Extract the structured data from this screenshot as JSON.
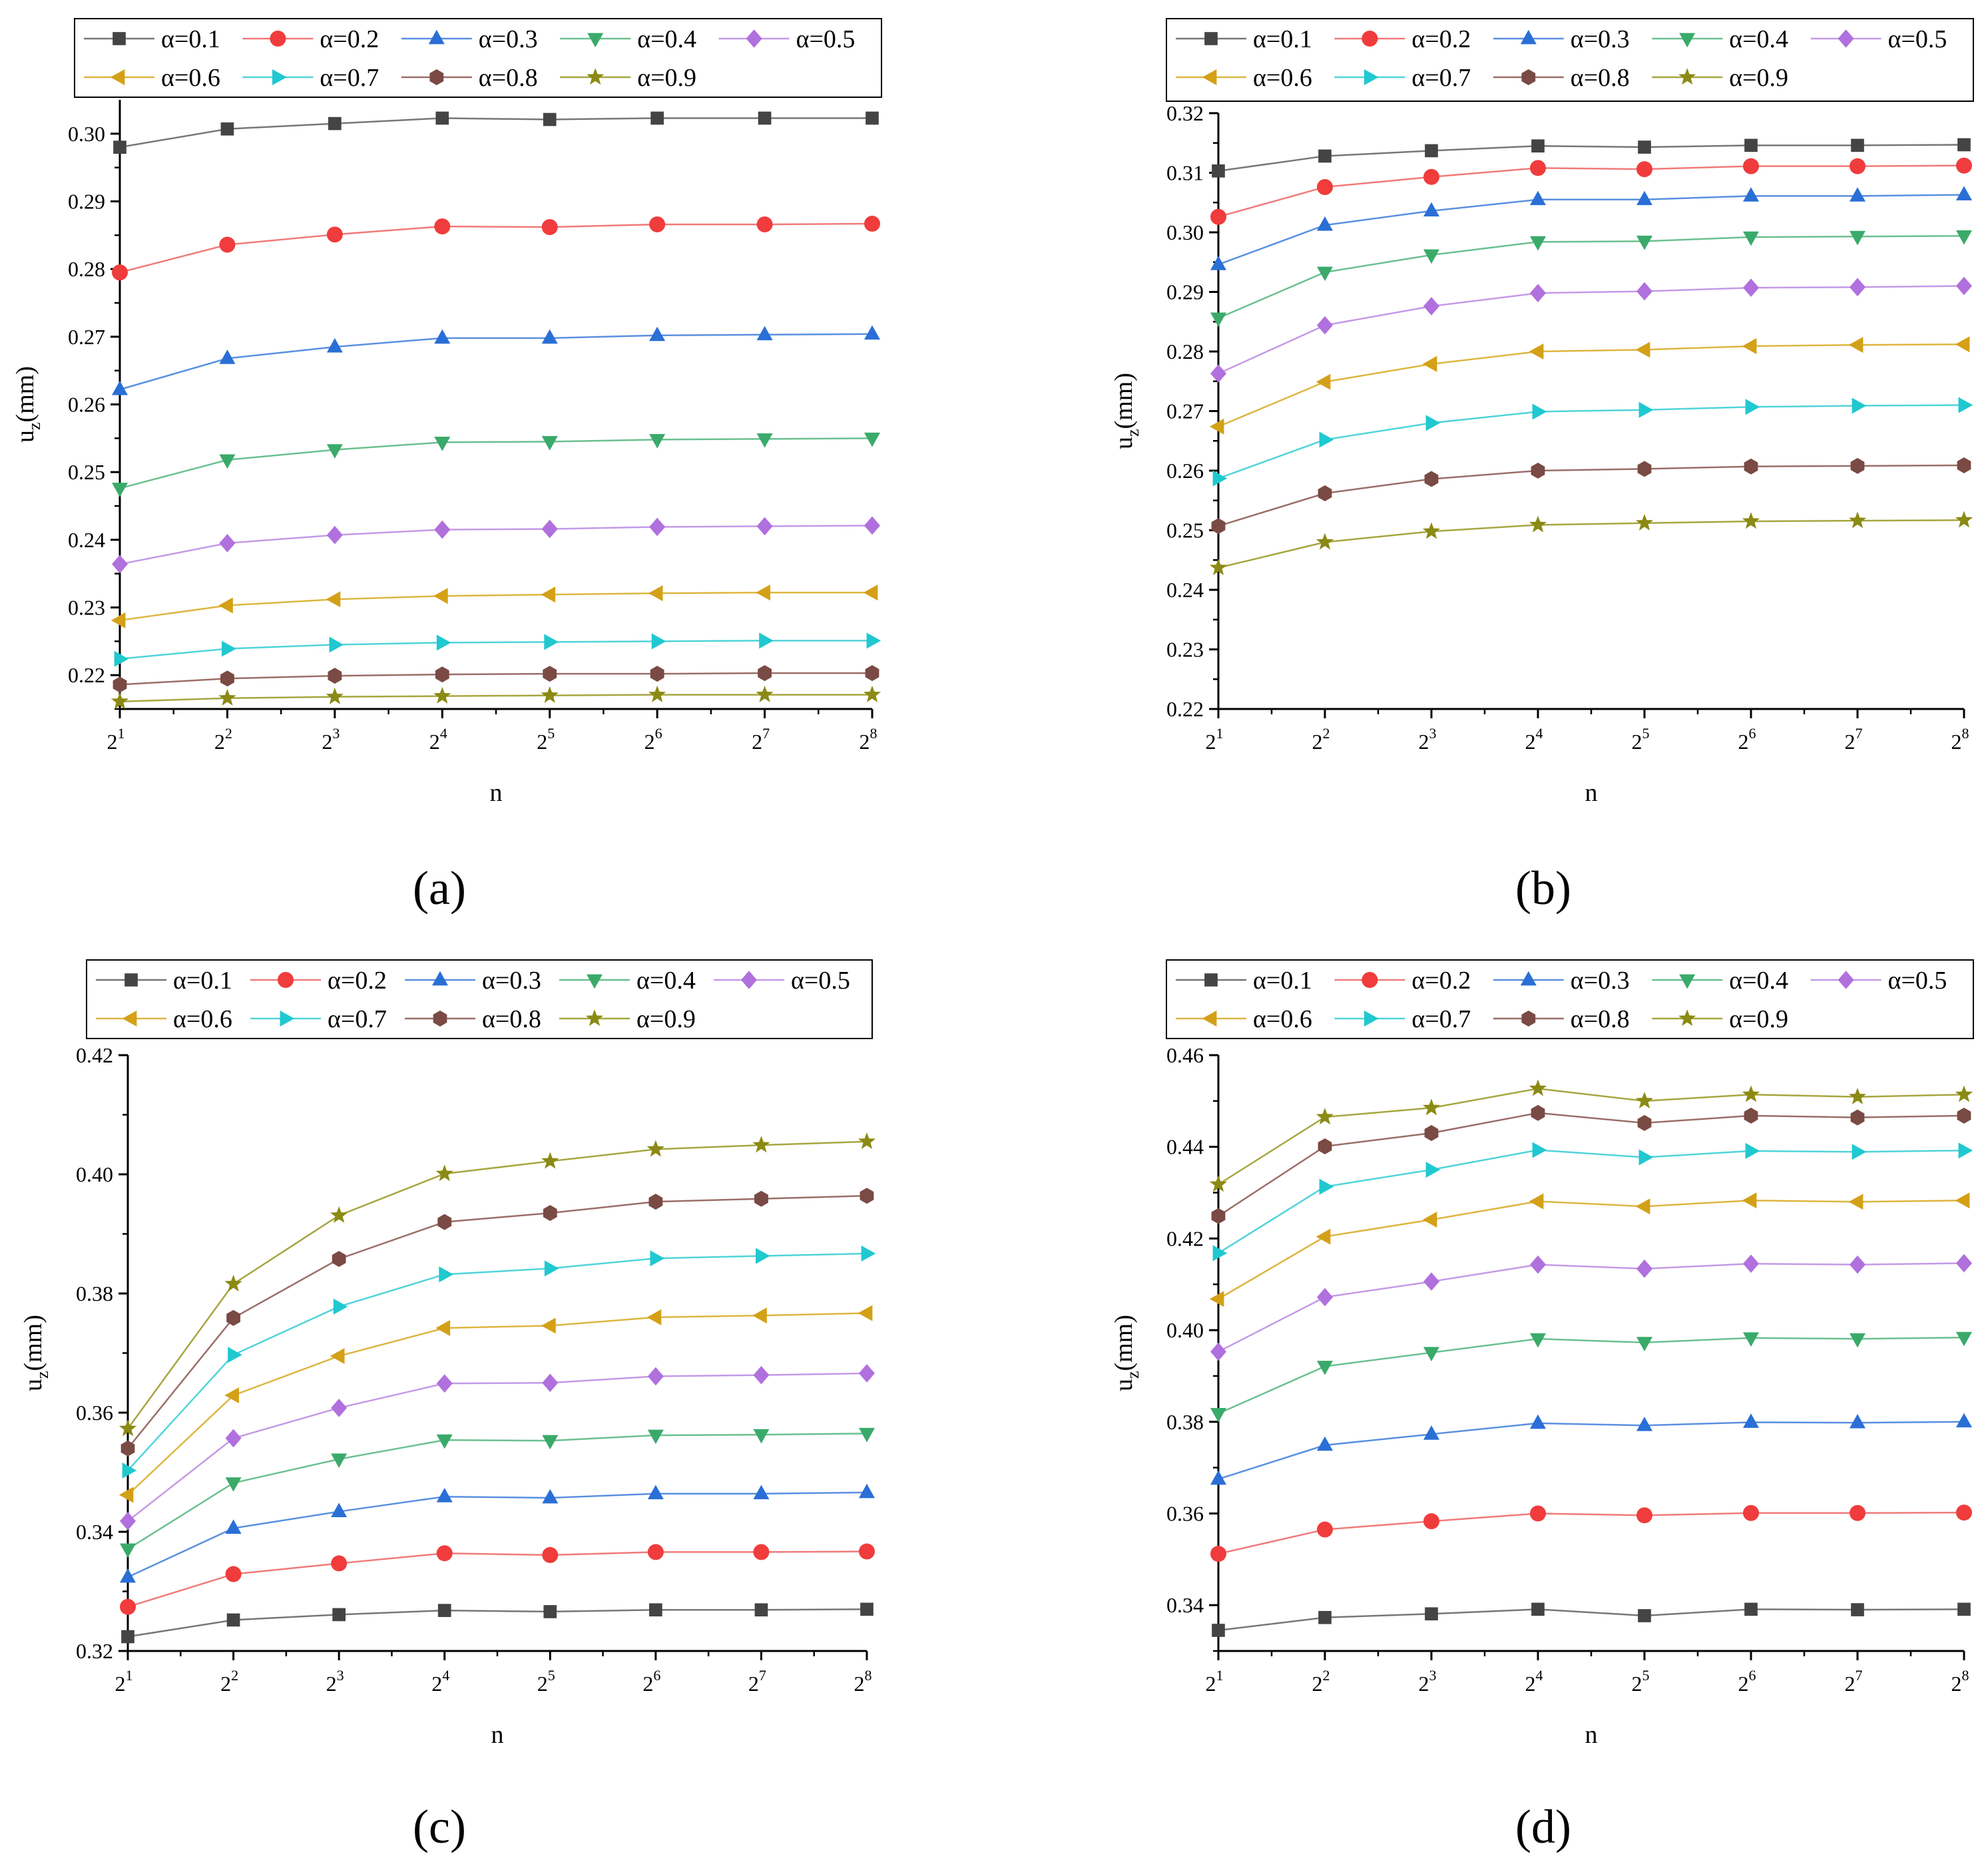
{
  "figure": {
    "panel_labels": [
      "(a)",
      "(b)",
      "(c)",
      "(d)"
    ]
  },
  "legend_entries": [
    "α=0.1",
    "α=0.2",
    "α=0.3",
    "α=0.4",
    "α=0.5",
    "α=0.6",
    "α=0.7",
    "α=0.8",
    "α=0.9"
  ],
  "series_styles": [
    {
      "name": "α=0.1",
      "color": "#444444",
      "line": "#777777",
      "marker": "square"
    },
    {
      "name": "α=0.2",
      "color": "#f03c3c",
      "line": "#f07a7a",
      "marker": "circle"
    },
    {
      "name": "α=0.3",
      "color": "#2a6fd6",
      "line": "#5a90e0",
      "marker": "triangle-up"
    },
    {
      "name": "α=0.4",
      "color": "#3aaa6a",
      "line": "#6ac090",
      "marker": "triangle-down"
    },
    {
      "name": "α=0.5",
      "color": "#b070dd",
      "line": "#c49ae6",
      "marker": "diamond"
    },
    {
      "name": "α=0.6",
      "color": "#d4a017",
      "line": "#ddb640",
      "marker": "triangle-left"
    },
    {
      "name": "α=0.7",
      "color": "#20c8d0",
      "line": "#50d4da",
      "marker": "triangle-right"
    },
    {
      "name": "α=0.8",
      "color": "#7a4a44",
      "line": "#9a6e68",
      "marker": "hexagon"
    },
    {
      "name": "α=0.9",
      "color": "#8a8a14",
      "line": "#a6a640",
      "marker": "star"
    }
  ],
  "chart_data": [
    {
      "type": "line",
      "panel": "(a)",
      "xlabel": "n",
      "ylabel": "u_z(mm)",
      "ylabel_main": "u",
      "ylabel_sub": "z",
      "ylabel_rest": "(mm)",
      "x": [
        1,
        2,
        3,
        4,
        5,
        6,
        7,
        8
      ],
      "x_tick_base": "2",
      "x_tick_exponents": [
        "1",
        "2",
        "3",
        "4",
        "5",
        "6",
        "7",
        "8"
      ],
      "ylim": [
        0.215,
        0.305
      ],
      "yticks": [
        0.22,
        0.23,
        0.24,
        0.25,
        0.26,
        0.27,
        0.28,
        0.29,
        0.3
      ],
      "ytick_labels": [
        "0.22",
        "0.23",
        "0.24",
        "0.25",
        "0.26",
        "0.27",
        "0.28",
        "0.29",
        "0.30"
      ],
      "series": [
        {
          "name": "α=0.1",
          "values": [
            0.298,
            0.3007,
            0.3015,
            0.3023,
            0.3021,
            0.3023,
            0.3023,
            0.3023
          ]
        },
        {
          "name": "α=0.2",
          "values": [
            0.2795,
            0.2836,
            0.2851,
            0.2863,
            0.2862,
            0.2866,
            0.2866,
            0.2867
          ]
        },
        {
          "name": "α=0.3",
          "values": [
            0.2622,
            0.2668,
            0.2685,
            0.2698,
            0.2698,
            0.2702,
            0.2703,
            0.2704
          ]
        },
        {
          "name": "α=0.4",
          "values": [
            0.2476,
            0.2518,
            0.2533,
            0.2544,
            0.2545,
            0.2548,
            0.2549,
            0.255
          ]
        },
        {
          "name": "α=0.5",
          "values": [
            0.2364,
            0.2395,
            0.2407,
            0.2415,
            0.2416,
            0.2419,
            0.242,
            0.2421
          ]
        },
        {
          "name": "α=0.6",
          "values": [
            0.2281,
            0.2303,
            0.2312,
            0.2317,
            0.2319,
            0.2321,
            0.2322,
            0.2322
          ]
        },
        {
          "name": "α=0.7",
          "values": [
            0.2224,
            0.2239,
            0.2245,
            0.2248,
            0.2249,
            0.225,
            0.2251,
            0.2251
          ]
        },
        {
          "name": "α=0.8",
          "values": [
            0.2186,
            0.2195,
            0.2199,
            0.2201,
            0.2202,
            0.2202,
            0.2203,
            0.2203
          ]
        },
        {
          "name": "α=0.9",
          "values": [
            0.2161,
            0.2166,
            0.2168,
            0.2169,
            0.217,
            0.2171,
            0.2171,
            0.2171
          ]
        }
      ]
    },
    {
      "type": "line",
      "panel": "(b)",
      "xlabel": "n",
      "ylabel": "u_z(mm)",
      "ylabel_main": "u",
      "ylabel_sub": "z",
      "ylabel_rest": "(mm)",
      "x": [
        1,
        2,
        3,
        4,
        5,
        6,
        7,
        8
      ],
      "x_tick_base": "2",
      "x_tick_exponents": [
        "1",
        "2",
        "3",
        "4",
        "5",
        "6",
        "7",
        "8"
      ],
      "ylim": [
        0.22,
        0.32
      ],
      "yticks": [
        0.22,
        0.23,
        0.24,
        0.25,
        0.26,
        0.27,
        0.28,
        0.29,
        0.3,
        0.31,
        0.32
      ],
      "ytick_labels": [
        "0.22",
        "0.23",
        "0.24",
        "0.25",
        "0.26",
        "0.27",
        "0.28",
        "0.29",
        "0.30",
        "0.31",
        "0.32"
      ],
      "series": [
        {
          "name": "α=0.1",
          "values": [
            0.3103,
            0.3128,
            0.3137,
            0.3145,
            0.3143,
            0.3146,
            0.3146,
            0.3147
          ]
        },
        {
          "name": "α=0.2",
          "values": [
            0.3026,
            0.3076,
            0.3093,
            0.3108,
            0.3106,
            0.3111,
            0.3111,
            0.3112
          ]
        },
        {
          "name": "α=0.3",
          "values": [
            0.2946,
            0.3012,
            0.3036,
            0.3055,
            0.3055,
            0.3061,
            0.3061,
            0.3063
          ]
        },
        {
          "name": "α=0.4",
          "values": [
            0.2856,
            0.2933,
            0.2962,
            0.2984,
            0.2985,
            0.2992,
            0.2993,
            0.2994
          ]
        },
        {
          "name": "α=0.5",
          "values": [
            0.2763,
            0.2844,
            0.2876,
            0.2898,
            0.2901,
            0.2907,
            0.2908,
            0.291
          ]
        },
        {
          "name": "α=0.6",
          "values": [
            0.2674,
            0.2749,
            0.2779,
            0.28,
            0.2803,
            0.2809,
            0.2811,
            0.2812
          ]
        },
        {
          "name": "α=0.7",
          "values": [
            0.2587,
            0.2652,
            0.268,
            0.2699,
            0.2702,
            0.2707,
            0.2709,
            0.271
          ]
        },
        {
          "name": "α=0.8",
          "values": [
            0.2507,
            0.2562,
            0.2586,
            0.26,
            0.2603,
            0.2607,
            0.2608,
            0.2609
          ]
        },
        {
          "name": "α=0.9",
          "values": [
            0.2437,
            0.248,
            0.2498,
            0.2509,
            0.2512,
            0.2515,
            0.2516,
            0.2517
          ]
        }
      ]
    },
    {
      "type": "line",
      "panel": "(c)",
      "xlabel": "n",
      "ylabel": "u_z(mm)",
      "ylabel_main": "u",
      "ylabel_sub": "z",
      "ylabel_rest": "(mm)",
      "x": [
        1,
        2,
        3,
        4,
        5,
        6,
        7,
        8
      ],
      "x_tick_base": "2",
      "x_tick_exponents": [
        "1",
        "2",
        "3",
        "4",
        "5",
        "6",
        "7",
        "8"
      ],
      "ylim": [
        0.32,
        0.42
      ],
      "yticks": [
        0.32,
        0.34,
        0.36,
        0.38,
        0.4,
        0.42
      ],
      "ytick_labels": [
        "0.32",
        "0.34",
        "0.36",
        "0.38",
        "0.40",
        "0.42"
      ],
      "series": [
        {
          "name": "α=0.1",
          "values": [
            0.3224,
            0.3252,
            0.3261,
            0.3268,
            0.3266,
            0.3269,
            0.3269,
            0.327
          ]
        },
        {
          "name": "α=0.2",
          "values": [
            0.3274,
            0.3329,
            0.3347,
            0.3364,
            0.3361,
            0.3366,
            0.3366,
            0.3367
          ]
        },
        {
          "name": "α=0.3",
          "values": [
            0.3324,
            0.3406,
            0.3434,
            0.3459,
            0.3457,
            0.3464,
            0.3464,
            0.3466
          ]
        },
        {
          "name": "α=0.4",
          "values": [
            0.3371,
            0.3482,
            0.3522,
            0.3554,
            0.3553,
            0.3562,
            0.3563,
            0.3565
          ]
        },
        {
          "name": "α=0.5",
          "values": [
            0.3418,
            0.3557,
            0.3608,
            0.3649,
            0.365,
            0.3661,
            0.3663,
            0.3666
          ]
        },
        {
          "name": "α=0.6",
          "values": [
            0.3462,
            0.3629,
            0.3695,
            0.3742,
            0.3746,
            0.376,
            0.3763,
            0.3767
          ]
        },
        {
          "name": "α=0.7",
          "values": [
            0.3503,
            0.3697,
            0.3778,
            0.3832,
            0.3842,
            0.3859,
            0.3863,
            0.3867
          ]
        },
        {
          "name": "α=0.8",
          "values": [
            0.354,
            0.3759,
            0.3858,
            0.392,
            0.3935,
            0.3954,
            0.3959,
            0.3964
          ]
        },
        {
          "name": "α=0.9",
          "values": [
            0.3573,
            0.3816,
            0.3931,
            0.4001,
            0.4022,
            0.4042,
            0.4049,
            0.4055
          ]
        }
      ]
    },
    {
      "type": "line",
      "panel": "(d)",
      "xlabel": "n",
      "ylabel": "u_z(mm)",
      "ylabel_main": "u",
      "ylabel_sub": "z",
      "ylabel_rest": "(mm)",
      "x": [
        1,
        2,
        3,
        4,
        5,
        6,
        7,
        8
      ],
      "x_tick_base": "2",
      "x_tick_exponents": [
        "1",
        "2",
        "3",
        "4",
        "5",
        "6",
        "7",
        "8"
      ],
      "ylim": [
        0.33,
        0.46
      ],
      "yticks": [
        0.34,
        0.36,
        0.38,
        0.4,
        0.42,
        0.44,
        0.46
      ],
      "ytick_labels": [
        "0.34",
        "0.36",
        "0.38",
        "0.40",
        "0.42",
        "0.44",
        "0.46"
      ],
      "series": [
        {
          "name": "α=0.1",
          "values": [
            0.3345,
            0.3373,
            0.3381,
            0.3391,
            0.3377,
            0.3391,
            0.339,
            0.3391
          ]
        },
        {
          "name": "α=0.2",
          "values": [
            0.3512,
            0.3565,
            0.3583,
            0.36,
            0.3596,
            0.3601,
            0.3601,
            0.3602
          ]
        },
        {
          "name": "α=0.3",
          "values": [
            0.3675,
            0.3749,
            0.3773,
            0.3797,
            0.3792,
            0.3799,
            0.3798,
            0.38
          ]
        },
        {
          "name": "α=0.4",
          "values": [
            0.3818,
            0.3921,
            0.3951,
            0.3981,
            0.3973,
            0.3983,
            0.3981,
            0.3984
          ]
        },
        {
          "name": "α=0.5",
          "values": [
            0.3953,
            0.4072,
            0.4106,
            0.4143,
            0.4134,
            0.4145,
            0.4143,
            0.4146
          ]
        },
        {
          "name": "α=0.6",
          "values": [
            0.4068,
            0.4204,
            0.4241,
            0.4281,
            0.427,
            0.4283,
            0.428,
            0.4283
          ]
        },
        {
          "name": "α=0.7",
          "values": [
            0.4168,
            0.4313,
            0.435,
            0.4393,
            0.4377,
            0.4391,
            0.4389,
            0.4392
          ]
        },
        {
          "name": "α=0.8",
          "values": [
            0.4249,
            0.4401,
            0.443,
            0.4474,
            0.4452,
            0.4468,
            0.4464,
            0.4468
          ]
        },
        {
          "name": "α=0.9",
          "values": [
            0.4318,
            0.4465,
            0.4485,
            0.4527,
            0.45,
            0.4514,
            0.4509,
            0.4514
          ]
        }
      ]
    }
  ]
}
